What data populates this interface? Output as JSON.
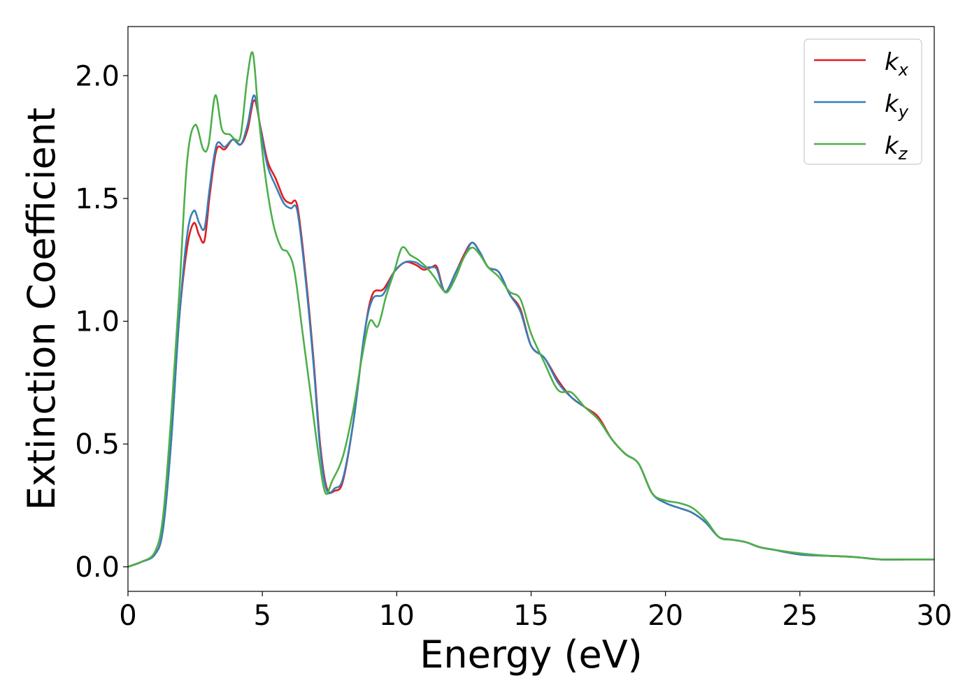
{
  "chart_data": {
    "type": "line",
    "title": "",
    "xlabel": "Energy (eV)",
    "ylabel": "Extinction Coefficient",
    "xlim": [
      0,
      30
    ],
    "ylim": [
      -0.1,
      2.2
    ],
    "xticks": [
      0,
      5,
      10,
      15,
      20,
      25,
      30
    ],
    "xtick_labels": [
      "0",
      "5",
      "10",
      "15",
      "20",
      "25",
      "30"
    ],
    "yticks": [
      0.0,
      0.5,
      1.0,
      1.5,
      2.0
    ],
    "ytick_labels": [
      "0.0",
      "0.5",
      "1.0",
      "1.5",
      "2.0"
    ],
    "grid": false,
    "legend_position": "top-right",
    "series": [
      {
        "name": "k_x",
        "label_main": "k",
        "label_sub": "x",
        "color": "#e41a1c",
        "x": [
          0,
          0.5,
          1.0,
          1.3,
          1.6,
          1.9,
          2.2,
          2.45,
          2.65,
          2.85,
          3.05,
          3.3,
          3.6,
          3.9,
          4.2,
          4.45,
          4.7,
          4.95,
          5.2,
          5.5,
          5.8,
          6.05,
          6.3,
          6.6,
          6.9,
          7.15,
          7.4,
          7.7,
          8.0,
          8.4,
          8.8,
          9.1,
          9.5,
          9.9,
          10.3,
          10.7,
          11.0,
          11.3,
          11.5,
          11.8,
          12.2,
          12.5,
          12.8,
          13.1,
          13.4,
          13.8,
          14.2,
          14.6,
          15.0,
          15.5,
          16.0,
          16.5,
          17.0,
          17.5,
          18.0,
          18.5,
          19.0,
          19.5,
          20.0,
          20.5,
          21.0,
          21.5,
          22.0,
          22.5,
          23.0,
          23.5,
          24.0,
          25.0,
          26.0,
          27.0,
          28.0,
          29.0,
          30.0
        ],
        "y": [
          0.0,
          0.02,
          0.05,
          0.15,
          0.5,
          1.0,
          1.3,
          1.4,
          1.35,
          1.33,
          1.52,
          1.7,
          1.7,
          1.74,
          1.72,
          1.78,
          1.9,
          1.78,
          1.65,
          1.58,
          1.5,
          1.48,
          1.47,
          1.2,
          0.85,
          0.5,
          0.32,
          0.31,
          0.35,
          0.6,
          0.95,
          1.11,
          1.13,
          1.2,
          1.24,
          1.23,
          1.21,
          1.22,
          1.22,
          1.12,
          1.2,
          1.27,
          1.32,
          1.28,
          1.22,
          1.2,
          1.11,
          1.05,
          0.9,
          0.85,
          0.76,
          0.69,
          0.65,
          0.61,
          0.52,
          0.46,
          0.42,
          0.3,
          0.26,
          0.24,
          0.22,
          0.18,
          0.12,
          0.11,
          0.1,
          0.08,
          0.07,
          0.05,
          0.045,
          0.04,
          0.03,
          0.03,
          0.03
        ]
      },
      {
        "name": "k_y",
        "label_main": "k",
        "label_sub": "y",
        "color": "#377eb8",
        "x": [
          0,
          0.5,
          1.0,
          1.3,
          1.6,
          1.9,
          2.2,
          2.45,
          2.65,
          2.85,
          3.05,
          3.3,
          3.6,
          3.9,
          4.2,
          4.45,
          4.7,
          4.95,
          5.2,
          5.5,
          5.8,
          6.05,
          6.3,
          6.6,
          6.9,
          7.15,
          7.4,
          7.7,
          8.0,
          8.4,
          8.8,
          9.1,
          9.5,
          9.9,
          10.3,
          10.7,
          11.0,
          11.3,
          11.5,
          11.8,
          12.2,
          12.5,
          12.8,
          13.1,
          13.4,
          13.8,
          14.2,
          14.6,
          15.0,
          15.5,
          16.0,
          16.5,
          17.0,
          17.5,
          18.0,
          18.5,
          19.0,
          19.5,
          20.0,
          20.5,
          21.0,
          21.5,
          22.0,
          22.5,
          23.0,
          23.5,
          24.0,
          25.0,
          26.0,
          27.0,
          28.0,
          29.0,
          30.0
        ],
        "y": [
          0.0,
          0.02,
          0.05,
          0.15,
          0.5,
          1.0,
          1.35,
          1.45,
          1.4,
          1.38,
          1.55,
          1.72,
          1.71,
          1.74,
          1.72,
          1.8,
          1.92,
          1.77,
          1.63,
          1.55,
          1.48,
          1.46,
          1.45,
          1.18,
          0.83,
          0.48,
          0.31,
          0.32,
          0.36,
          0.6,
          0.95,
          1.09,
          1.11,
          1.2,
          1.24,
          1.24,
          1.22,
          1.22,
          1.21,
          1.12,
          1.2,
          1.26,
          1.32,
          1.28,
          1.22,
          1.2,
          1.11,
          1.04,
          0.9,
          0.85,
          0.75,
          0.69,
          0.65,
          0.6,
          0.52,
          0.46,
          0.42,
          0.3,
          0.26,
          0.24,
          0.22,
          0.18,
          0.12,
          0.11,
          0.1,
          0.08,
          0.07,
          0.05,
          0.045,
          0.04,
          0.03,
          0.03,
          0.03
        ]
      },
      {
        "name": "k_z",
        "label_main": "k",
        "label_sub": "z",
        "color": "#4daf4a",
        "x": [
          0,
          0.5,
          1.0,
          1.3,
          1.6,
          1.9,
          2.2,
          2.5,
          2.8,
          3.0,
          3.25,
          3.5,
          3.8,
          4.0,
          4.2,
          4.45,
          4.65,
          4.85,
          5.1,
          5.4,
          5.7,
          5.95,
          6.2,
          6.5,
          6.8,
          7.1,
          7.35,
          7.6,
          8.0,
          8.4,
          8.7,
          9.0,
          9.3,
          9.6,
          9.9,
          10.2,
          10.5,
          10.8,
          11.1,
          11.4,
          11.7,
          11.9,
          12.2,
          12.5,
          12.8,
          13.1,
          13.4,
          13.8,
          14.2,
          14.6,
          15.0,
          15.5,
          16.0,
          16.5,
          17.0,
          17.5,
          18.0,
          18.5,
          19.0,
          19.5,
          20.0,
          20.5,
          21.0,
          21.5,
          22.0,
          22.5,
          23.0,
          23.5,
          24.0,
          25.0,
          26.0,
          27.0,
          28.0,
          29.0,
          30.0
        ],
        "y": [
          0.0,
          0.02,
          0.06,
          0.2,
          0.6,
          1.1,
          1.65,
          1.8,
          1.7,
          1.72,
          1.92,
          1.78,
          1.76,
          1.74,
          1.76,
          2.0,
          2.09,
          1.85,
          1.6,
          1.4,
          1.3,
          1.28,
          1.2,
          0.95,
          0.7,
          0.45,
          0.3,
          0.35,
          0.45,
          0.65,
          0.85,
          1.0,
          0.98,
          1.1,
          1.2,
          1.3,
          1.27,
          1.25,
          1.22,
          1.18,
          1.13,
          1.12,
          1.18,
          1.26,
          1.3,
          1.27,
          1.22,
          1.18,
          1.12,
          1.09,
          0.95,
          0.83,
          0.72,
          0.71,
          0.65,
          0.6,
          0.52,
          0.46,
          0.42,
          0.3,
          0.27,
          0.26,
          0.24,
          0.19,
          0.12,
          0.11,
          0.1,
          0.08,
          0.07,
          0.055,
          0.045,
          0.04,
          0.03,
          0.03,
          0.03
        ]
      }
    ]
  }
}
